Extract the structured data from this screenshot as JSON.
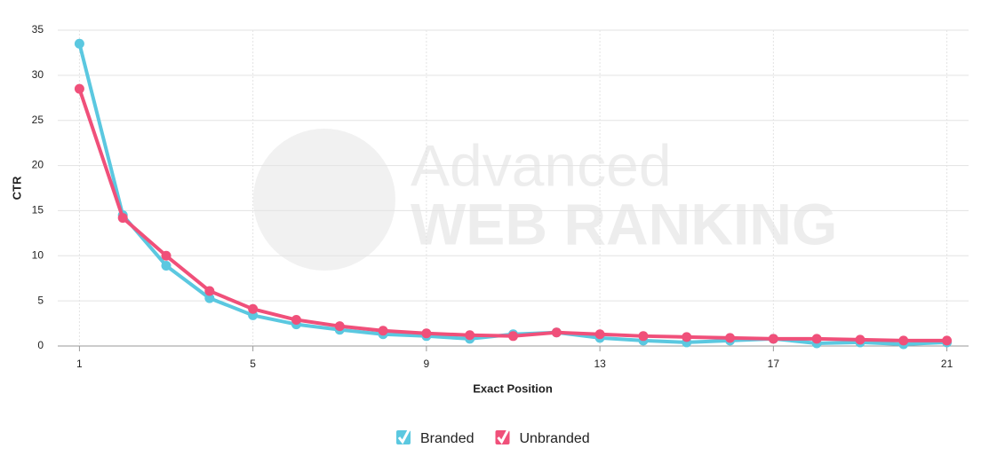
{
  "chart_data": {
    "type": "line",
    "watermark": [
      "Advanced",
      "WEB RANKING"
    ],
    "x_label": "Exact Position",
    "y_label": "CTR",
    "x": [
      1,
      2,
      3,
      4,
      5,
      6,
      7,
      8,
      9,
      10,
      11,
      12,
      13,
      14,
      15,
      16,
      17,
      18,
      19,
      20,
      21
    ],
    "series": [
      {
        "name": "Branded",
        "color": "#5bc8e0",
        "values": [
          33.5,
          14.5,
          8.9,
          5.3,
          3.4,
          2.4,
          1.8,
          1.3,
          1.1,
          0.8,
          1.3,
          1.5,
          0.9,
          0.6,
          0.4,
          0.6,
          0.8,
          0.3,
          0.4,
          0.2,
          0.4
        ]
      },
      {
        "name": "Unbranded",
        "color": "#f0507a",
        "values": [
          28.5,
          14.2,
          10.0,
          6.1,
          4.1,
          2.9,
          2.2,
          1.7,
          1.4,
          1.2,
          1.1,
          1.5,
          1.3,
          1.1,
          1.0,
          0.9,
          0.8,
          0.8,
          0.7,
          0.6,
          0.6
        ]
      }
    ],
    "xlim": [
      0.5,
      21.5
    ],
    "xticks": [
      1,
      5,
      9,
      13,
      17,
      21
    ],
    "ylim": [
      0,
      35
    ],
    "yticks": [
      0,
      5,
      10,
      15,
      20,
      25,
      30,
      35
    ],
    "grid": true
  }
}
